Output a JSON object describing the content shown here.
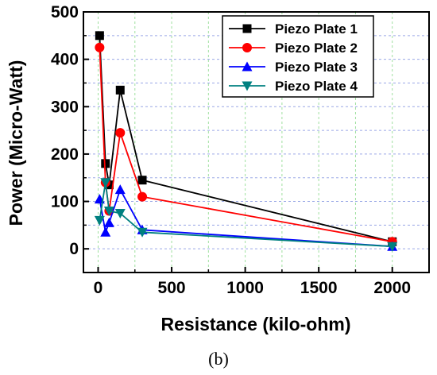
{
  "chart_data": {
    "type": "line",
    "title": "",
    "xlabel": "Resistance (kilo-ohm)",
    "ylabel": "Power (Micro-Watt)",
    "xlim": [
      -100,
      2250
    ],
    "ylim": [
      -50,
      500
    ],
    "xticks": [
      0,
      500,
      1000,
      1500,
      2000
    ],
    "yticks": [
      0,
      100,
      200,
      300,
      400,
      500
    ],
    "grid": true,
    "legend_position": "top-right",
    "caption": "(b)",
    "series": [
      {
        "name": "Piezo Plate 1",
        "color": "#000000",
        "marker": "square",
        "x": [
          10,
          50,
          75,
          150,
          300,
          2000
        ],
        "y": [
          450,
          180,
          135,
          335,
          145,
          15
        ]
      },
      {
        "name": "Piezo Plate 2",
        "color": "#ff0000",
        "marker": "circle",
        "x": [
          10,
          50,
          75,
          150,
          300,
          2000
        ],
        "y": [
          425,
          140,
          80,
          245,
          110,
          15
        ]
      },
      {
        "name": "Piezo Plate 3",
        "color": "#0000ff",
        "marker": "triangle-up",
        "x": [
          10,
          50,
          75,
          150,
          300,
          2000
        ],
        "y": [
          105,
          35,
          55,
          125,
          40,
          5
        ]
      },
      {
        "name": "Piezo Plate 4",
        "color": "#008080",
        "marker": "triangle-down",
        "x": [
          10,
          50,
          75,
          150,
          300,
          2000
        ],
        "y": [
          60,
          140,
          80,
          75,
          35,
          5
        ]
      }
    ]
  }
}
